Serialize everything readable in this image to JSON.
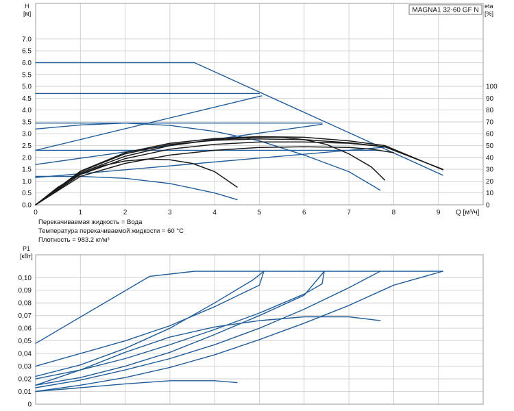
{
  "model_label": "MAGNA1 32-60 GF N",
  "notes": [
    "Перекачиваемая жидкость = Вода",
    "Температура перекачиваемой жидкости = 60 °C",
    "Плотность = 983.2 кг/м³"
  ],
  "colors": {
    "blue": "#1f5c99",
    "black": "#1a1a1a",
    "grid": "#c8c8c8"
  },
  "chart_data": [
    {
      "type": "line",
      "id": "head",
      "ylabel": "H",
      "yunit": "[м]",
      "xlabel": "Q [м³/ч]",
      "y2label": "eta",
      "y2unit": "[%]",
      "xlim": [
        0,
        10
      ],
      "ylim": [
        0,
        8.5
      ],
      "y2lim": [
        0,
        170
      ],
      "grid": true,
      "xticks": [
        "0",
        "1",
        "2",
        "3",
        "4",
        "5",
        "6",
        "7",
        "8",
        "9"
      ],
      "yticks": [
        "0.0",
        "0.5",
        "1.0",
        "1.5",
        "2.0",
        "2.5",
        "3.0",
        "3.5",
        "4.0",
        "4.5",
        "5.0",
        "5.5",
        "6.0",
        "6.5",
        "7.0"
      ],
      "y2ticks": [
        "0",
        "10",
        "20",
        "30",
        "40",
        "50",
        "60",
        "70",
        "80",
        "90",
        "100"
      ],
      "series": [
        {
          "color": "blue",
          "points": [
            [
              0,
              6.0
            ],
            [
              3.55,
              6.0
            ],
            [
              9.1,
              1.25
            ]
          ]
        },
        {
          "color": "blue",
          "points": [
            [
              0,
              4.7
            ],
            [
              5.0,
              4.7
            ]
          ]
        },
        {
          "color": "blue",
          "points": [
            [
              0,
              3.45
            ],
            [
              6.4,
              3.45
            ]
          ]
        },
        {
          "color": "blue",
          "points": [
            [
              0,
              2.3
            ],
            [
              7.7,
              2.3
            ]
          ]
        },
        {
          "color": "blue",
          "points": [
            [
              0,
              2.3
            ],
            [
              5.05,
              4.6
            ]
          ]
        },
        {
          "color": "blue",
          "points": [
            [
              0,
              1.7
            ],
            [
              6.4,
              3.4
            ]
          ]
        },
        {
          "color": "blue",
          "points": [
            [
              0,
              1.15
            ],
            [
              7.9,
              2.45
            ]
          ]
        },
        {
          "color": "blue",
          "points": [
            [
              0,
              1.2
            ],
            [
              1.0,
              1.2
            ],
            [
              2.0,
              1.12
            ],
            [
              3.0,
              0.9
            ],
            [
              4.0,
              0.5
            ],
            [
              4.5,
              0.22
            ]
          ]
        },
        {
          "color": "blue",
          "points": [
            [
              0,
              3.2
            ],
            [
              1.0,
              3.37
            ],
            [
              2.0,
              3.45
            ],
            [
              3.0,
              3.35
            ],
            [
              4.0,
              3.1
            ],
            [
              5.0,
              2.7
            ],
            [
              6.0,
              2.1
            ],
            [
              7.0,
              1.4
            ],
            [
              7.7,
              0.62
            ]
          ]
        },
        {
          "color": "black",
          "points": [
            [
              0,
              0
            ],
            [
              0.5,
              0.75
            ],
            [
              1.0,
              1.3
            ],
            [
              1.5,
              1.65
            ],
            [
              2.0,
              1.85
            ],
            [
              2.5,
              1.93
            ],
            [
              3.0,
              1.9
            ],
            [
              3.5,
              1.75
            ],
            [
              4.0,
              1.4
            ],
            [
              4.5,
              0.75
            ]
          ]
        },
        {
          "color": "black",
          "points": [
            [
              0,
              0
            ],
            [
              1.0,
              1.35
            ],
            [
              2.0,
              2.05
            ],
            [
              3.0,
              2.5
            ],
            [
              4.0,
              2.75
            ],
            [
              5.0,
              2.85
            ],
            [
              5.5,
              2.85
            ],
            [
              6.0,
              2.75
            ],
            [
              6.5,
              2.55
            ],
            [
              7.0,
              2.15
            ],
            [
              7.5,
              1.6
            ],
            [
              7.8,
              1.05
            ]
          ]
        },
        {
          "color": "black",
          "points": [
            [
              0,
              0
            ],
            [
              1.0,
              1.2
            ],
            [
              2.0,
              1.75
            ],
            [
              3.0,
              2.1
            ],
            [
              4.0,
              2.3
            ],
            [
              5.0,
              2.42
            ],
            [
              6.0,
              2.45
            ],
            [
              7.0,
              2.42
            ],
            [
              7.5,
              2.35
            ],
            [
              8.0,
              2.2
            ]
          ]
        },
        {
          "color": "black",
          "points": [
            [
              0,
              0
            ],
            [
              1.0,
              1.28
            ],
            [
              2.0,
              1.95
            ],
            [
              3.0,
              2.35
            ],
            [
              4.0,
              2.55
            ],
            [
              5.0,
              2.65
            ],
            [
              6.0,
              2.65
            ],
            [
              7.0,
              2.6
            ],
            [
              7.8,
              2.45
            ],
            [
              9.1,
              1.5
            ]
          ]
        },
        {
          "color": "black",
          "points": [
            [
              0,
              0
            ],
            [
              1.0,
              1.42
            ],
            [
              2.0,
              2.2
            ],
            [
              3.0,
              2.6
            ],
            [
              4.0,
              2.8
            ],
            [
              5.0,
              2.88
            ],
            [
              6.0,
              2.85
            ],
            [
              7.0,
              2.7
            ],
            [
              7.8,
              2.5
            ],
            [
              9.1,
              1.48
            ]
          ]
        },
        {
          "color": "black",
          "points": [
            [
              0,
              0
            ],
            [
              1.0,
              1.4
            ],
            [
              2.0,
              2.15
            ],
            [
              3.0,
              2.55
            ],
            [
              4.0,
              2.72
            ],
            [
              5.0,
              2.78
            ],
            [
              6.0,
              2.75
            ],
            [
              7.0,
              2.62
            ],
            [
              7.8,
              2.45
            ]
          ]
        }
      ]
    },
    {
      "type": "line",
      "id": "power",
      "ylabel": "P1",
      "yunit": "[кВт]",
      "xlim": [
        0,
        10
      ],
      "ylim": [
        0,
        0.118
      ],
      "grid": true,
      "yticks": [
        "0",
        "0,01",
        "0,02",
        "0,03",
        "0,04",
        "0,05",
        "0,06",
        "0,07",
        "0,08",
        "0,09",
        "0,10"
      ],
      "series": [
        {
          "color": "blue",
          "points": [
            [
              0,
              0.048
            ],
            [
              2.55,
              0.101
            ],
            [
              3.55,
              0.105
            ],
            [
              9.1,
              0.105
            ]
          ]
        },
        {
          "color": "blue",
          "points": [
            [
              0,
              0.03
            ],
            [
              1.0,
              0.04
            ],
            [
              2.0,
              0.05
            ],
            [
              3.0,
              0.062
            ],
            [
              4.0,
              0.077
            ],
            [
              5.0,
              0.094
            ],
            [
              5.1,
              0.105
            ]
          ]
        },
        {
          "color": "blue",
          "points": [
            [
              0,
              0.022
            ],
            [
              1.0,
              0.031
            ],
            [
              2.0,
              0.044
            ],
            [
              3.0,
              0.06
            ],
            [
              4.0,
              0.08
            ],
            [
              4.85,
              0.098
            ],
            [
              5.1,
              0.105
            ]
          ]
        },
        {
          "color": "blue",
          "points": [
            [
              0,
              0.02
            ],
            [
              1.0,
              0.027
            ],
            [
              2.0,
              0.036
            ],
            [
              3.0,
              0.047
            ],
            [
              4.0,
              0.059
            ],
            [
              5.0,
              0.072
            ],
            [
              6.0,
              0.087
            ],
            [
              6.4,
              0.095
            ],
            [
              6.45,
              0.105
            ]
          ]
        },
        {
          "color": "blue",
          "points": [
            [
              0,
              0.015
            ],
            [
              1.0,
              0.021
            ],
            [
              2.0,
              0.03
            ],
            [
              3.0,
              0.041
            ],
            [
              4.0,
              0.055
            ],
            [
              5.0,
              0.07
            ],
            [
              6.0,
              0.086
            ],
            [
              6.45,
              0.105
            ]
          ]
        },
        {
          "color": "blue",
          "points": [
            [
              0,
              0.013
            ],
            [
              1.0,
              0.019
            ],
            [
              2.0,
              0.027
            ],
            [
              3.0,
              0.036
            ],
            [
              4.0,
              0.047
            ],
            [
              5.0,
              0.06
            ],
            [
              6.0,
              0.075
            ],
            [
              7.0,
              0.092
            ],
            [
              7.7,
              0.105
            ]
          ]
        },
        {
          "color": "blue",
          "points": [
            [
              0,
              0.01
            ],
            [
              1.0,
              0.015
            ],
            [
              2.0,
              0.021
            ],
            [
              3.0,
              0.029
            ],
            [
              4.0,
              0.039
            ],
            [
              5.0,
              0.051
            ],
            [
              6.0,
              0.064
            ],
            [
              7.0,
              0.078
            ],
            [
              8.0,
              0.094
            ],
            [
              9.1,
              0.105
            ]
          ]
        },
        {
          "color": "blue",
          "points": [
            [
              0,
              0.01
            ],
            [
              1.0,
              0.013
            ],
            [
              2.0,
              0.016
            ],
            [
              3.0,
              0.0185
            ],
            [
              4.0,
              0.0185
            ],
            [
              4.5,
              0.017
            ]
          ]
        },
        {
          "color": "blue",
          "points": [
            [
              0,
              0.015
            ],
            [
              1.0,
              0.027
            ],
            [
              2.0,
              0.041
            ],
            [
              3.0,
              0.053
            ],
            [
              4.0,
              0.061
            ],
            [
              5.0,
              0.066
            ],
            [
              6.0,
              0.069
            ],
            [
              7.0,
              0.069
            ],
            [
              7.7,
              0.066
            ]
          ]
        }
      ]
    }
  ]
}
